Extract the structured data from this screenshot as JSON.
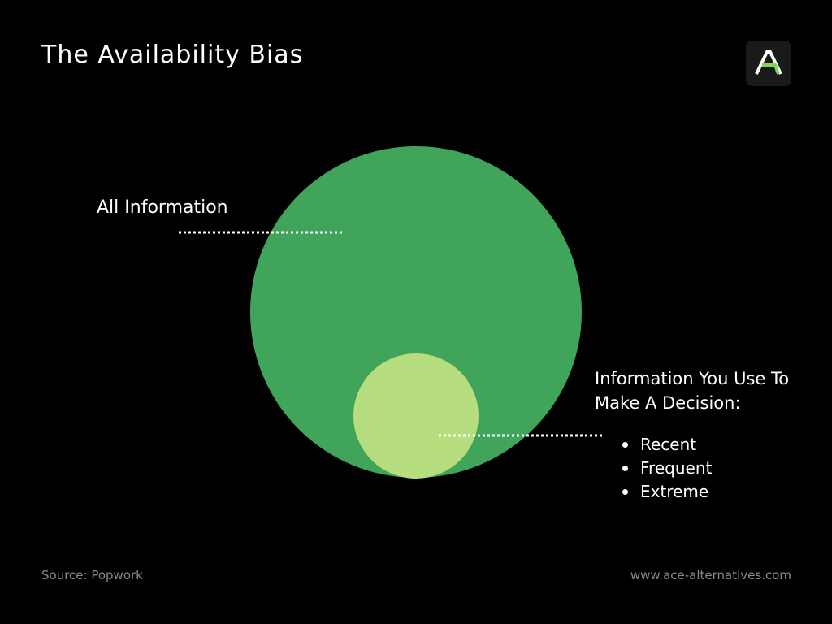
{
  "title": "The Availability Bias",
  "logo": {
    "icon": "ace-logo-icon",
    "letter": "A",
    "accent_color": "#7ed957"
  },
  "diagram": {
    "outer_circle": {
      "label": "All Information",
      "color": "#40a55b"
    },
    "inner_circle": {
      "label_lines": [
        "Information You Use To",
        "Make A Decision:"
      ],
      "color": "#b6de7e",
      "bullets": [
        "Recent",
        "Frequent",
        "Extreme"
      ]
    },
    "connector_color": "#ffffff"
  },
  "footer": {
    "source": "Source: Popwork",
    "website": "www.ace-alternatives.com"
  }
}
